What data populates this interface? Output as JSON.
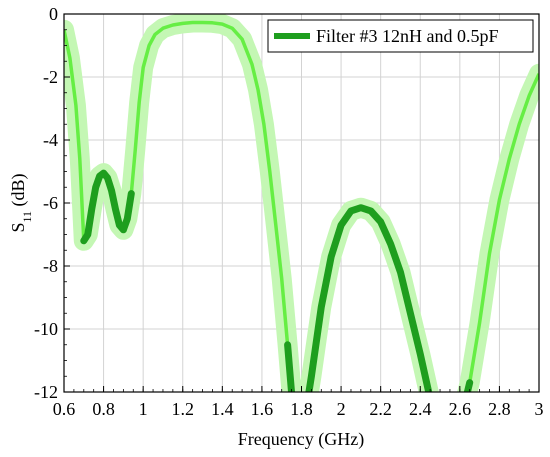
{
  "chart_data": {
    "type": "line",
    "xlabel": "Frequency (GHz)",
    "ylabel_main": "S",
    "ylabel_sub": "11",
    "ylabel_unit": " (dB)",
    "xlim": [
      0.6,
      3.0
    ],
    "ylim": [
      -12,
      0
    ],
    "x_ticks": [
      0.6,
      0.8,
      1,
      1.2,
      1.4,
      1.6,
      1.8,
      2,
      2.2,
      2.4,
      2.6,
      2.8,
      3
    ],
    "x_tick_labels": [
      "0.6",
      "0.8",
      "1",
      "1.2",
      "1.4",
      "1.6",
      "1.8",
      "2",
      "2.2",
      "2.4",
      "2.6",
      "2.8",
      "3"
    ],
    "y_ticks": [
      0,
      -2,
      -4,
      -6,
      -8,
      -10,
      -12
    ],
    "y_tick_labels": [
      "0",
      "-2",
      "-4",
      "-6",
      "-8",
      "-10",
      "-12"
    ],
    "grid": true,
    "legend_position": "top-right",
    "colors": {
      "highlight": "#1e9e1e",
      "nominal": "#66ee44",
      "band": "#c4f7b4",
      "grid": "#d3d3d3"
    },
    "series": [
      {
        "name": "Filter #3 12nH and 0.5pF",
        "x": [
          0.6,
          0.63,
          0.66,
          0.68,
          0.7,
          0.72,
          0.74,
          0.76,
          0.78,
          0.8,
          0.82,
          0.84,
          0.86,
          0.88,
          0.9,
          0.92,
          0.94,
          0.96,
          0.98,
          1.0,
          1.03,
          1.06,
          1.1,
          1.15,
          1.2,
          1.25,
          1.3,
          1.35,
          1.4,
          1.45,
          1.5,
          1.55,
          1.58,
          1.61,
          1.64,
          1.67,
          1.7,
          1.73,
          1.76,
          1.8,
          1.85,
          1.9,
          1.95,
          2.0,
          2.05,
          2.1,
          2.15,
          2.2,
          2.25,
          2.3,
          2.35,
          2.4,
          2.45,
          2.5,
          2.55,
          2.6,
          2.65,
          2.7,
          2.75,
          2.8,
          2.85,
          2.9,
          2.95,
          3.0
        ],
        "y": [
          -0.5,
          -1.4,
          -2.9,
          -4.6,
          -7.2,
          -7.0,
          -6.2,
          -5.5,
          -5.15,
          -5.05,
          -5.2,
          -5.6,
          -6.2,
          -6.7,
          -6.85,
          -6.5,
          -5.7,
          -4.3,
          -2.8,
          -1.7,
          -1.0,
          -0.65,
          -0.45,
          -0.35,
          -0.3,
          -0.27,
          -0.27,
          -0.28,
          -0.32,
          -0.45,
          -0.8,
          -1.6,
          -2.4,
          -3.5,
          -5.0,
          -6.7,
          -8.4,
          -10.5,
          -12.8,
          -13.5,
          -11.5,
          -9.3,
          -7.7,
          -6.7,
          -6.25,
          -6.15,
          -6.25,
          -6.6,
          -7.3,
          -8.2,
          -9.5,
          -10.8,
          -12.2,
          -13.5,
          -13.6,
          -13.0,
          -11.7,
          -9.8,
          -7.6,
          -5.9,
          -4.6,
          -3.5,
          -2.6,
          -1.9
        ],
        "highlight_ranges": [
          [
            0.7,
            0.95
          ],
          [
            1.72,
            2.68
          ]
        ]
      }
    ]
  }
}
